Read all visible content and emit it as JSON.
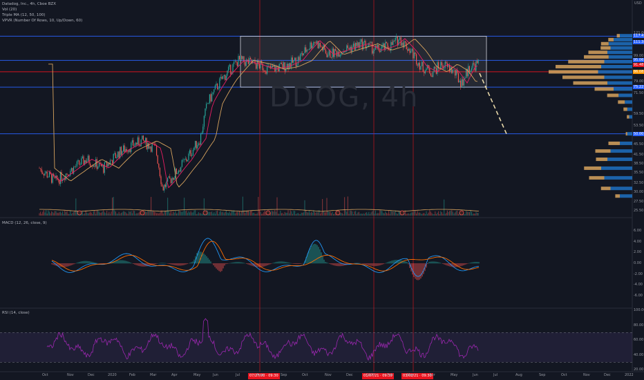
{
  "header": {
    "symbol_line": "Datadog, Inc., 4h, Cboe BZX",
    "indicators": [
      "Vol (20)",
      "Triple MA (12, 50, 100)",
      "VPVR (Number Of Rows, 10, Up/Down, 60)"
    ],
    "macd_label": "MACD (12, 26, close, 9)",
    "rsi_label": "RSI (14, close)",
    "watermark": "DDOG, 4h"
  },
  "colors": {
    "background": "#131722",
    "up": "#26a69a",
    "down": "#ef5350",
    "red_line": "#e8141f",
    "blue_line": "#2962ff",
    "ma_fast": "#e91e63",
    "ma_slow": "#d7a35e",
    "vp_up": "#1e6ab8",
    "vp_down": "#d7a35e",
    "rsi": "#9c27b0",
    "macd": "#2196f3",
    "signal": "#ff6d00"
  },
  "chart_data": {
    "type": "candlestick",
    "x_ticks": [
      "Oct",
      "Nov",
      "Dec",
      "2020",
      "Feb",
      "Mar",
      "Apr",
      "May",
      "Jun",
      "Jul",
      "Aug",
      "Sep",
      "Oct",
      "Nov",
      "Dec",
      "2021",
      "Feb",
      "Mar",
      "Apr",
      "May",
      "Jun",
      "Jul",
      "Aug",
      "Sep",
      "Oct",
      "Nov",
      "Dec",
      "2022"
    ],
    "price_axis": {
      "ticks": [
        121.0,
        99.0,
        79.0,
        71.5,
        59.5,
        53.5,
        45.5,
        41.5,
        38.5,
        35.5,
        32.5,
        30.0,
        27.5,
        25.5
      ],
      "tags": [
        {
          "label": "117.47",
          "price": 117.47,
          "color": "#2962ff"
        },
        {
          "label": "111.38",
          "price": 111.38,
          "color": "#2962ff"
        },
        {
          "label": "95.06",
          "price": 95.06,
          "color": "#2962ff"
        },
        {
          "label": "91.48",
          "price": 91.48,
          "color": "#e8141f"
        },
        {
          "label": "86.08",
          "price": 86.08,
          "color": "#ff9800"
        },
        {
          "label": "75.22",
          "price": 75.22,
          "color": "#2962ff"
        },
        {
          "label": "50.00",
          "price": 50.0,
          "color": "#2962ff"
        }
      ],
      "top_label": "USD"
    },
    "horizontal_lines": [
      {
        "price": 117.47,
        "color": "#2962ff"
      },
      {
        "price": 95.06,
        "color": "#2962ff"
      },
      {
        "price": 86.08,
        "color": "#e8141f"
      },
      {
        "price": 75.22,
        "color": "#2962ff"
      },
      {
        "price": 50.0,
        "color": "#2962ff"
      }
    ],
    "vertical_markers": [
      "07/27/20 · 09:30",
      "01/07/21 · 09:30",
      "03/02/21 · 09:30"
    ],
    "range_box": {
      "from": "Jul 2020",
      "to": "Jun 2021",
      "high": 117.47,
      "low": 75.22
    },
    "macd_axis": [
      "6.00",
      "4.00",
      "2.00",
      "0.00",
      "-2.00",
      "-4.00",
      "-6.00"
    ],
    "rsi_axis": [
      "100.00",
      "80.00",
      "60.00",
      "40.00",
      "20.00"
    ],
    "rsi_band": [
      70,
      30
    ]
  }
}
